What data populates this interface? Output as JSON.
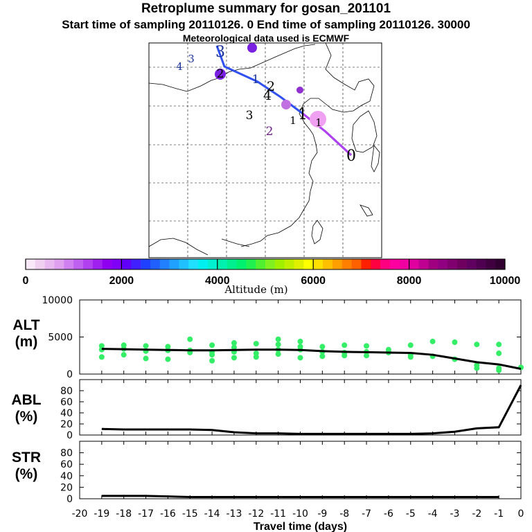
{
  "header": {
    "title": "Retroplume summary for gosan_201101",
    "subtitle": "Start time of sampling 20110126.    0     End time of sampling 20110126. 30000",
    "subtitle2": "Meteorological data used is ECMWF"
  },
  "colorbar": {
    "colors": [
      "#f8e8f8",
      "#f0d0f0",
      "#e8b8f0",
      "#e0a0f0",
      "#d080f0",
      "#c060f0",
      "#b040f0",
      "#a020f0",
      "#9000f0",
      "#8000f8",
      "#6000f8",
      "#4020ff",
      "#2040ff",
      "#2060ff",
      "#2080ff",
      "#20a0ff",
      "#20c0ff",
      "#20e0ff",
      "#00f0f0",
      "#00f0d0",
      "#00f0b0",
      "#00f090",
      "#00f070",
      "#20f050",
      "#50f030",
      "#80f020",
      "#a0f000",
      "#c0f000",
      "#e0f000",
      "#ffff00",
      "#ffe000",
      "#ffc000",
      "#ffa000",
      "#ff8000",
      "#ff6000",
      "#ff2000",
      "#ff0040",
      "#ff0080",
      "#ff00a0",
      "#f000a0",
      "#e000a0",
      "#c00090",
      "#a00080",
      "#900080",
      "#800070",
      "#700060",
      "#600060",
      "#500050",
      "#400040",
      "#300030"
    ],
    "tick_labels": [
      "0",
      "2000",
      "4000",
      "6000",
      "8000",
      "10000"
    ],
    "label": "Altitude (m)"
  },
  "map": {
    "labels": [
      {
        "t": "4",
        "c": "#1a3399"
      },
      {
        "t": "3",
        "c": "#1a3399"
      },
      {
        "t": "3",
        "c": "#1a3399"
      },
      {
        "t": "1",
        "c": "#1a3399"
      },
      {
        "t": "2",
        "c": "#000000"
      },
      {
        "t": "4",
        "c": "#000000"
      },
      {
        "t": "3",
        "c": "#000000"
      },
      {
        "t": "2",
        "c": "#6a2080"
      },
      {
        "t": "1",
        "c": "#000000"
      },
      {
        "t": "1",
        "c": "#000000"
      },
      {
        "t": "1",
        "c": "#000000"
      },
      {
        "t": "0",
        "c": "#000000"
      },
      {
        "t": "2",
        "c": "#000000"
      }
    ],
    "markers": [
      {
        "c": "#7a20e0"
      },
      {
        "c": "#7a20e0"
      },
      {
        "c": "#c070e0"
      },
      {
        "c": "#9030d0"
      },
      {
        "c": "#f0a0f0"
      }
    ]
  },
  "chart_data": [
    {
      "type": "scatter",
      "name": "ALT",
      "ylabel": "ALT (m)",
      "ylim": [
        0,
        10000
      ],
      "y_ticks": [
        "10000",
        "5000",
        "0"
      ],
      "xlim": [
        -20,
        0
      ],
      "line_x": [
        -19,
        -18,
        -17,
        -16,
        -15,
        -14,
        -13,
        -12,
        -11,
        -10,
        -9,
        -8,
        -7,
        -6,
        -5,
        -4,
        -3,
        -2,
        -1,
        0
      ],
      "line_y": [
        3400,
        3350,
        3300,
        3250,
        3200,
        3200,
        3250,
        3300,
        3300,
        3250,
        3100,
        3000,
        2950,
        2900,
        2850,
        2600,
        2100,
        1600,
        1300,
        700
      ],
      "points": [
        {
          "x": -19,
          "y": 3800
        },
        {
          "x": -19,
          "y": 3300
        },
        {
          "x": -19,
          "y": 2300
        },
        {
          "x": -18,
          "y": 3900
        },
        {
          "x": -18,
          "y": 3400
        },
        {
          "x": -18,
          "y": 2600
        },
        {
          "x": -17,
          "y": 3800
        },
        {
          "x": -17,
          "y": 3100
        },
        {
          "x": -17,
          "y": 2100
        },
        {
          "x": -16,
          "y": 3700
        },
        {
          "x": -16,
          "y": 3200
        },
        {
          "x": -16,
          "y": 2000
        },
        {
          "x": -15,
          "y": 4700
        },
        {
          "x": -15,
          "y": 2900
        },
        {
          "x": -15,
          "y": 3200
        },
        {
          "x": -14,
          "y": 3900
        },
        {
          "x": -14,
          "y": 3000
        },
        {
          "x": -14,
          "y": 2600
        },
        {
          "x": -14,
          "y": 1800
        },
        {
          "x": -13,
          "y": 4200
        },
        {
          "x": -13,
          "y": 3600
        },
        {
          "x": -13,
          "y": 3000
        },
        {
          "x": -13,
          "y": 2200
        },
        {
          "x": -12,
          "y": 4100
        },
        {
          "x": -12,
          "y": 2800
        },
        {
          "x": -12,
          "y": 2300
        },
        {
          "x": -11,
          "y": 4700
        },
        {
          "x": -11,
          "y": 4000
        },
        {
          "x": -11,
          "y": 3300
        },
        {
          "x": -11,
          "y": 2700
        },
        {
          "x": -10,
          "y": 4400
        },
        {
          "x": -10,
          "y": 3700
        },
        {
          "x": -10,
          "y": 3300
        },
        {
          "x": -10,
          "y": 2200
        },
        {
          "x": -9,
          "y": 3700
        },
        {
          "x": -9,
          "y": 3000
        },
        {
          "x": -9,
          "y": 2400
        },
        {
          "x": -8,
          "y": 3900
        },
        {
          "x": -8,
          "y": 2900
        },
        {
          "x": -8,
          "y": 2500
        },
        {
          "x": -7,
          "y": 3800
        },
        {
          "x": -7,
          "y": 3000
        },
        {
          "x": -7,
          "y": 2500
        },
        {
          "x": -6,
          "y": 3300
        },
        {
          "x": -6,
          "y": 3000
        },
        {
          "x": -6,
          "y": 2900
        },
        {
          "x": -5,
          "y": 3900
        },
        {
          "x": -5,
          "y": 2600
        },
        {
          "x": -5,
          "y": 2300
        },
        {
          "x": -4,
          "y": 4400
        },
        {
          "x": -4,
          "y": 2400
        },
        {
          "x": -3,
          "y": 4300
        },
        {
          "x": -3,
          "y": 2000
        },
        {
          "x": -2,
          "y": 4000
        },
        {
          "x": -2,
          "y": 1200
        },
        {
          "x": -2,
          "y": 800
        },
        {
          "x": -1,
          "y": 4000
        },
        {
          "x": -1,
          "y": 2800
        },
        {
          "x": -1,
          "y": 800
        },
        {
          "x": -1,
          "y": 500
        },
        {
          "x": 0,
          "y": 900
        }
      ]
    },
    {
      "type": "line",
      "name": "ABL",
      "ylabel": "ABL (%)",
      "ylim": [
        0,
        100
      ],
      "y_ticks": [
        "80",
        "60",
        "40",
        "20",
        "0"
      ],
      "xlim": [
        -20,
        0
      ],
      "x": [
        -19,
        -18,
        -17,
        -16,
        -15,
        -14,
        -13,
        -12,
        -11,
        -10,
        -9,
        -8,
        -7,
        -6,
        -5,
        -4,
        -3,
        -2,
        -1,
        0
      ],
      "y": [
        11,
        10,
        10,
        10,
        10,
        9,
        5,
        3,
        3,
        2,
        2,
        2,
        2,
        2,
        2,
        3,
        6,
        12,
        14,
        90
      ]
    },
    {
      "type": "line",
      "name": "STR",
      "ylabel": "STR (%)",
      "ylim": [
        0,
        100
      ],
      "y_ticks": [
        "80",
        "60",
        "40",
        "20",
        "0"
      ],
      "xlim": [
        -20,
        0
      ],
      "x": [
        -19,
        -18,
        -17,
        -16,
        -15,
        -14,
        -13,
        -12,
        -11,
        -10,
        -9,
        -8,
        -7,
        -6,
        -5,
        -4,
        -3,
        -2,
        -1
      ],
      "y": [
        5,
        5,
        5,
        4,
        3,
        3,
        3,
        3,
        3,
        3,
        3,
        3,
        3,
        3,
        3,
        3,
        3,
        3,
        3
      ],
      "xlabel": "Travel time (days)",
      "x_ticks": [
        "-20",
        "-19",
        "-18",
        "-17",
        "-16",
        "-15",
        "-14",
        "-13",
        "-12",
        "-11",
        "-10",
        "-9",
        "-8",
        "-7",
        "-6",
        "-5",
        "-4",
        "-3",
        "-2",
        "-1",
        "0"
      ]
    }
  ],
  "panel_labels": {
    "alt": [
      "ALT",
      "(m)"
    ],
    "abl": [
      "ABL",
      "(%)"
    ],
    "str": [
      "STR",
      "(%)"
    ]
  }
}
